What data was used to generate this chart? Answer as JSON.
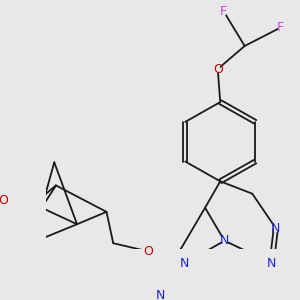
{
  "background_color": "#e8e8e8",
  "figsize": [
    3.0,
    3.0
  ],
  "dpi": 100,
  "bond_color": "#1a1a1a",
  "bond_lw": 1.3,
  "atom_bg_color": "#e8e8e8",
  "colors": {
    "F": "#cc44cc",
    "O": "#cc0000",
    "N": "#2222cc",
    "C": "#1a1a1a"
  }
}
